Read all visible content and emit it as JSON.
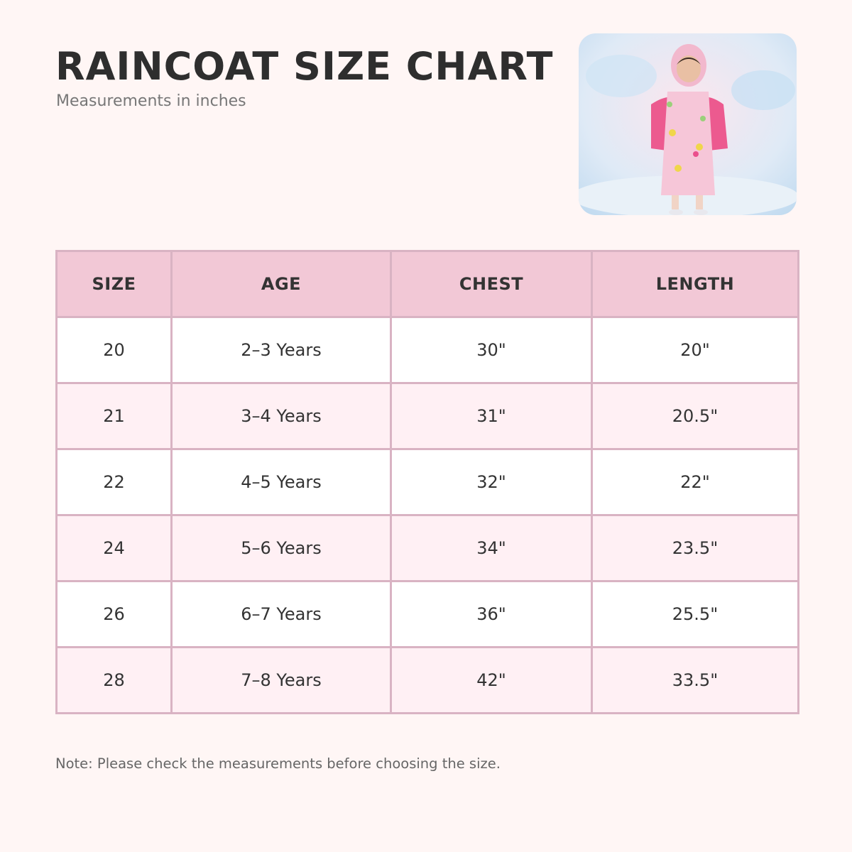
{
  "header": {
    "title": "RAINCOAT SIZE CHART",
    "subtitle": "Measurements in inches"
  },
  "table": {
    "columns": [
      "SIZE",
      "AGE",
      "CHEST",
      "LENGTH"
    ],
    "rows": [
      [
        "20",
        "2–3 Years",
        "30\"",
        "20\""
      ],
      [
        "21",
        "3–4 Years",
        "31\"",
        "20.5\""
      ],
      [
        "22",
        "4–5 Years",
        "32\"",
        "22\""
      ],
      [
        "24",
        "5–6 Years",
        "34\"",
        "23.5\""
      ],
      [
        "26",
        "6–7 Years",
        "36\"",
        "25.5\""
      ],
      [
        "28",
        "7–8 Years",
        "42\"",
        "33.5\""
      ]
    ]
  },
  "note": "Note: Please check the measurements before choosing the size."
}
